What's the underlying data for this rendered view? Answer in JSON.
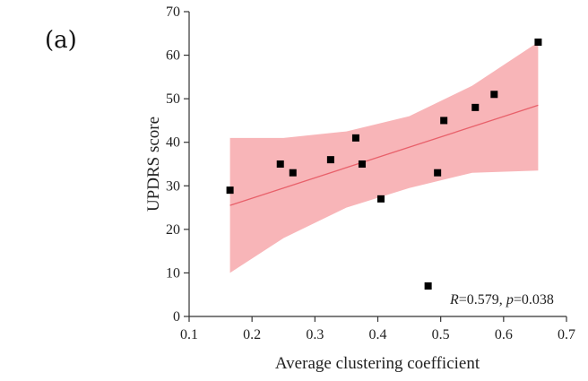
{
  "panel_label": "(a)",
  "chart_data": {
    "type": "scatter",
    "xlabel": "Average clustering coefficient",
    "ylabel": "UPDRS score",
    "xlim": [
      0.1,
      0.7
    ],
    "ylim": [
      0,
      70
    ],
    "xticks": [
      "0.1",
      "0.2",
      "0.3",
      "0.4",
      "0.5",
      "0.6",
      "0.7"
    ],
    "yticks": [
      "0",
      "10",
      "20",
      "30",
      "40",
      "50",
      "60",
      "70"
    ],
    "grid": false,
    "series": [
      {
        "x": [
          0.165,
          0.245,
          0.265,
          0.325,
          0.365,
          0.375,
          0.405,
          0.48,
          0.495,
          0.505,
          0.555,
          0.585,
          0.655
        ],
        "y": [
          29,
          35,
          33,
          36,
          41,
          35,
          27,
          7,
          33,
          45,
          48,
          51,
          63
        ]
      }
    ],
    "fit_line": {
      "x": [
        0.165,
        0.655
      ],
      "y": [
        25.5,
        48.5
      ]
    },
    "confidence_band": {
      "x": [
        0.165,
        0.25,
        0.35,
        0.45,
        0.55,
        0.655
      ],
      "upper": [
        41,
        41,
        42.5,
        46,
        53,
        63
      ],
      "lower": [
        10,
        18,
        25,
        29.5,
        33,
        33.5
      ]
    },
    "annotation": {
      "r_label": "R",
      "r_text": "=0.579, ",
      "p_label": "p",
      "p_text": "=0.038"
    },
    "colors": {
      "marker": "#000000",
      "band": "#f7a8ab",
      "line": "#e8606a"
    }
  }
}
